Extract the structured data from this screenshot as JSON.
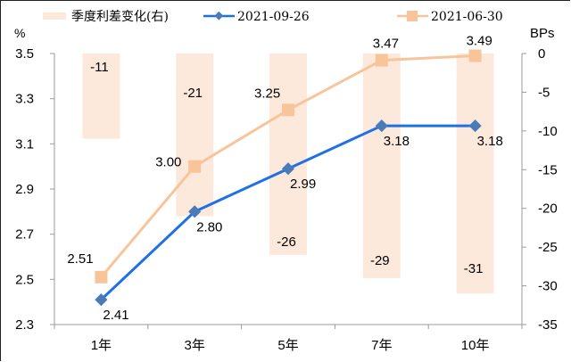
{
  "chart_data": {
    "type": "bar+line",
    "title": "",
    "categories": [
      "1年",
      "3年",
      "5年",
      "7年",
      "10年"
    ],
    "left_axis": {
      "label": "%",
      "min": 2.3,
      "max": 3.5,
      "step": 0.2,
      "ticks": [
        "3.5",
        "3.3",
        "3.1",
        "2.9",
        "2.7",
        "2.5",
        "2.3"
      ]
    },
    "right_axis": {
      "label": "BPs",
      "min": -35,
      "max": 0,
      "step": 5,
      "ticks": [
        "0",
        "-5",
        "-10",
        "-15",
        "-20",
        "-25",
        "-30",
        "-35"
      ]
    },
    "series": [
      {
        "name": "季度利差变化(右)",
        "type": "bar",
        "axis": "right",
        "color": "#fce9dc",
        "values": [
          -11,
          -21,
          -26,
          -29,
          -31
        ],
        "labels": [
          "-11",
          "-21",
          "-26",
          "-29",
          "-31"
        ]
      },
      {
        "name": "2021-09-26",
        "type": "line",
        "axis": "left",
        "marker": "diamond",
        "color": "#1f6fe5",
        "marker_color": "#4a7ab8",
        "values": [
          2.41,
          2.8,
          2.99,
          3.18,
          3.18
        ],
        "labels": [
          "2.41",
          "2.80",
          "2.99",
          "3.18",
          "3.18"
        ]
      },
      {
        "name": "2021-06-30",
        "type": "line",
        "axis": "left",
        "marker": "square",
        "color": "#f8c49a",
        "marker_color": "#f8c49a",
        "values": [
          2.51,
          3.0,
          3.25,
          3.47,
          3.49
        ],
        "labels": [
          "2.51",
          "3.00",
          "3.25",
          "3.47",
          "3.49"
        ]
      }
    ],
    "legend": {
      "position": "top",
      "entries": [
        "季度利差变化(右)",
        "2021-09-26",
        "2021-06-30"
      ]
    },
    "grid": false
  },
  "legend": {
    "bar_label": "季度利差变化(右)",
    "line1_label": "2021-09-26",
    "line2_label": "2021-06-30"
  },
  "axes": {
    "left_unit": "%",
    "right_unit": "BPs"
  }
}
